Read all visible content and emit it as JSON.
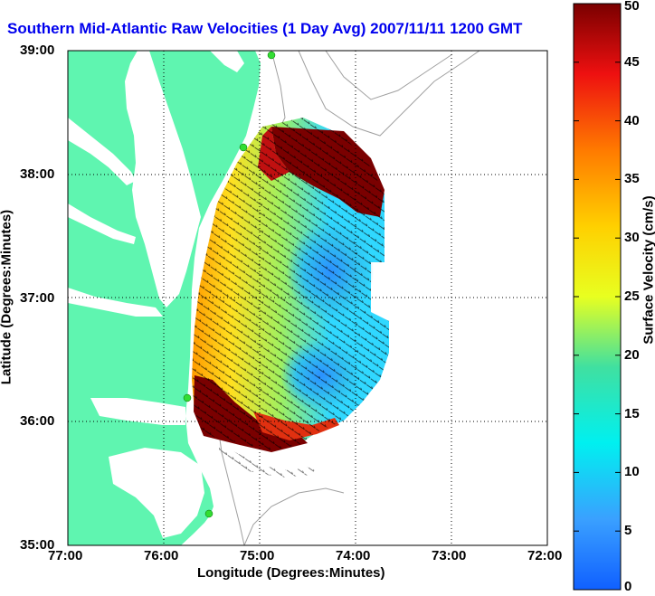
{
  "title": "Southern Mid-Atlantic Raw Velocities (1 Day Avg) 2007/11/11 1200 GMT",
  "xlabel": "Longitude (Degrees:Minutes)",
  "ylabel": "Latitude (Degrees:Minutes)",
  "colorbar_label": "Surface Velocity (cm/s)",
  "x_ticks": [
    "77:00",
    "76:00",
    "75:00",
    "74:00",
    "73:00",
    "72:00"
  ],
  "y_ticks": [
    "39:00",
    "38:00",
    "37:00",
    "36:00",
    "35:00"
  ],
  "colorbar_ticks": [
    "50",
    "45",
    "40",
    "35",
    "30",
    "25",
    "20",
    "15",
    "10",
    "5",
    "0"
  ],
  "colors": {
    "land": "#5ff5b0",
    "title": "#0000ee",
    "contour": "#a0a0a0",
    "station": "#33dd33"
  }
}
